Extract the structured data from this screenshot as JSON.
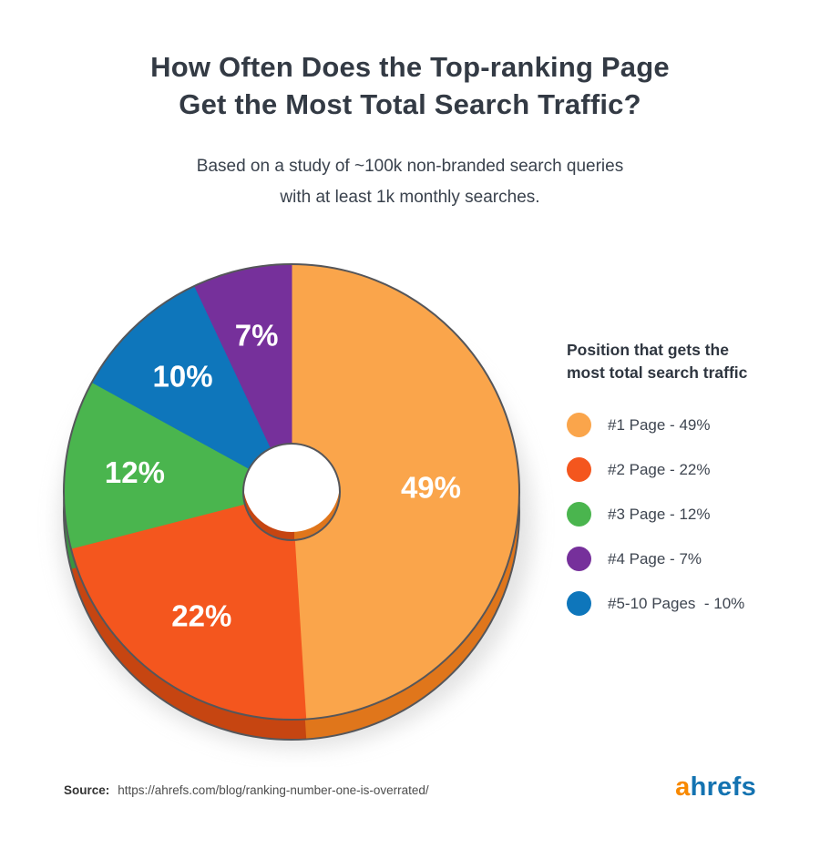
{
  "title": {
    "lines": [
      "How Often Does the Top-ranking Page",
      "Get the Most Total Search Traffic?"
    ]
  },
  "subtitle": {
    "lines": [
      "Based on a study of ~100k non-branded search queries",
      "with at least 1k monthly searches."
    ]
  },
  "chart_data": {
    "type": "pie",
    "style": "3d-donut",
    "start_angle_deg": 0,
    "direction": "clockwise",
    "title": "Position that gets the most total search traffic",
    "slices": [
      {
        "label": "#1 Page",
        "value_pct": 49,
        "display": "49%",
        "color": "#FAA54B",
        "side_color": "#E0761B"
      },
      {
        "label": "#2 Page",
        "value_pct": 22,
        "display": "22%",
        "color": "#F4561E",
        "side_color": "#C64511"
      },
      {
        "label": "#3 Page",
        "value_pct": 12,
        "display": "12%",
        "color": "#4AB54E",
        "side_color": "#3A9440"
      },
      {
        "label": "#4 Page",
        "value_pct": 7,
        "display": "7%",
        "color": "#76309B",
        "side_color": "#5C2579"
      },
      {
        "label": "#5-10 Pages",
        "value_pct": 10,
        "display": "10%",
        "color": "#0E76BB",
        "side_color": "#0A5C95"
      }
    ],
    "pie_order": [
      0,
      1,
      2,
      4,
      3
    ],
    "hole_ratio": 0.212,
    "outline_color": "#55565a",
    "label_color": "#ffffff",
    "legend_position": "right",
    "grid": false
  },
  "legend": {
    "title_lines": [
      "Position that gets the",
      "most total search traffic"
    ],
    "items": [
      {
        "label": "#1 Page - 49%",
        "color": "#FAA54B"
      },
      {
        "label": "#2 Page - 22%",
        "color": "#F4561E"
      },
      {
        "label": "#3 Page - 12%",
        "color": "#4AB54E"
      },
      {
        "label": "#4 Page - 7%",
        "color": "#76309B"
      },
      {
        "label": "#5-10 Pages  - 10%",
        "color": "#0E76BB"
      }
    ]
  },
  "footer": {
    "source_label": "Source:",
    "source_url": "https://ahrefs.com/blog/ranking-number-one-is-overrated/",
    "logo": {
      "prefix": "a",
      "rest": "hrefs",
      "prefix_color": "#F88900",
      "rest_color": "#1473B1"
    }
  }
}
